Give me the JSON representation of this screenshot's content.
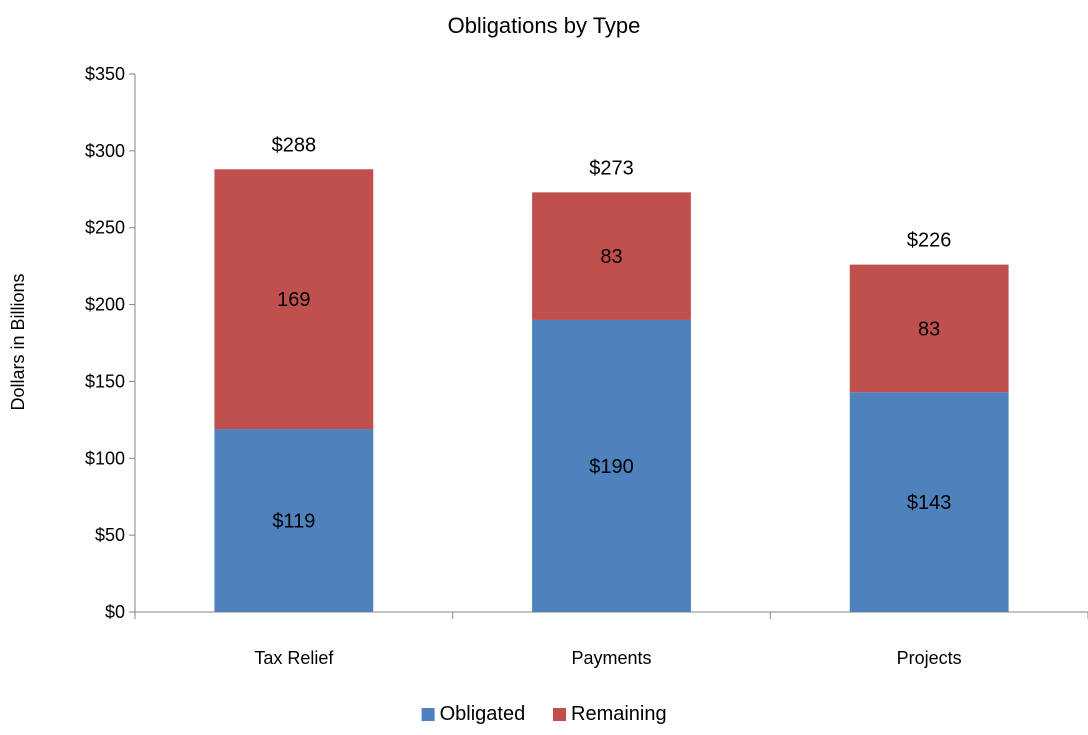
{
  "chart_data": {
    "type": "bar",
    "stacked": true,
    "title": "Obligations by Type",
    "xlabel": "",
    "ylabel": "Dollars in Billions",
    "categories": [
      "Tax Relief",
      "Payments",
      "Projects"
    ],
    "series": [
      {
        "name": "Obligated",
        "color": "#4f81bd",
        "values": [
          119,
          190,
          143
        ],
        "labels": [
          "$119",
          "$190",
          "$143"
        ]
      },
      {
        "name": "Remaining",
        "color": "#c0504d",
        "values": [
          169,
          83,
          83
        ],
        "labels": [
          "169",
          "83",
          "83"
        ]
      }
    ],
    "totals": [
      288,
      273,
      226
    ],
    "total_labels": [
      "$288",
      "$273",
      "$226"
    ],
    "ylim": [
      0,
      350
    ],
    "yticks": [
      0,
      50,
      100,
      150,
      200,
      250,
      300,
      350
    ],
    "ytick_labels": [
      "$0",
      "$50",
      "$100",
      "$150",
      "$200",
      "$250",
      "$300",
      "$350"
    ],
    "grid": false,
    "legend_position": "bottom"
  }
}
